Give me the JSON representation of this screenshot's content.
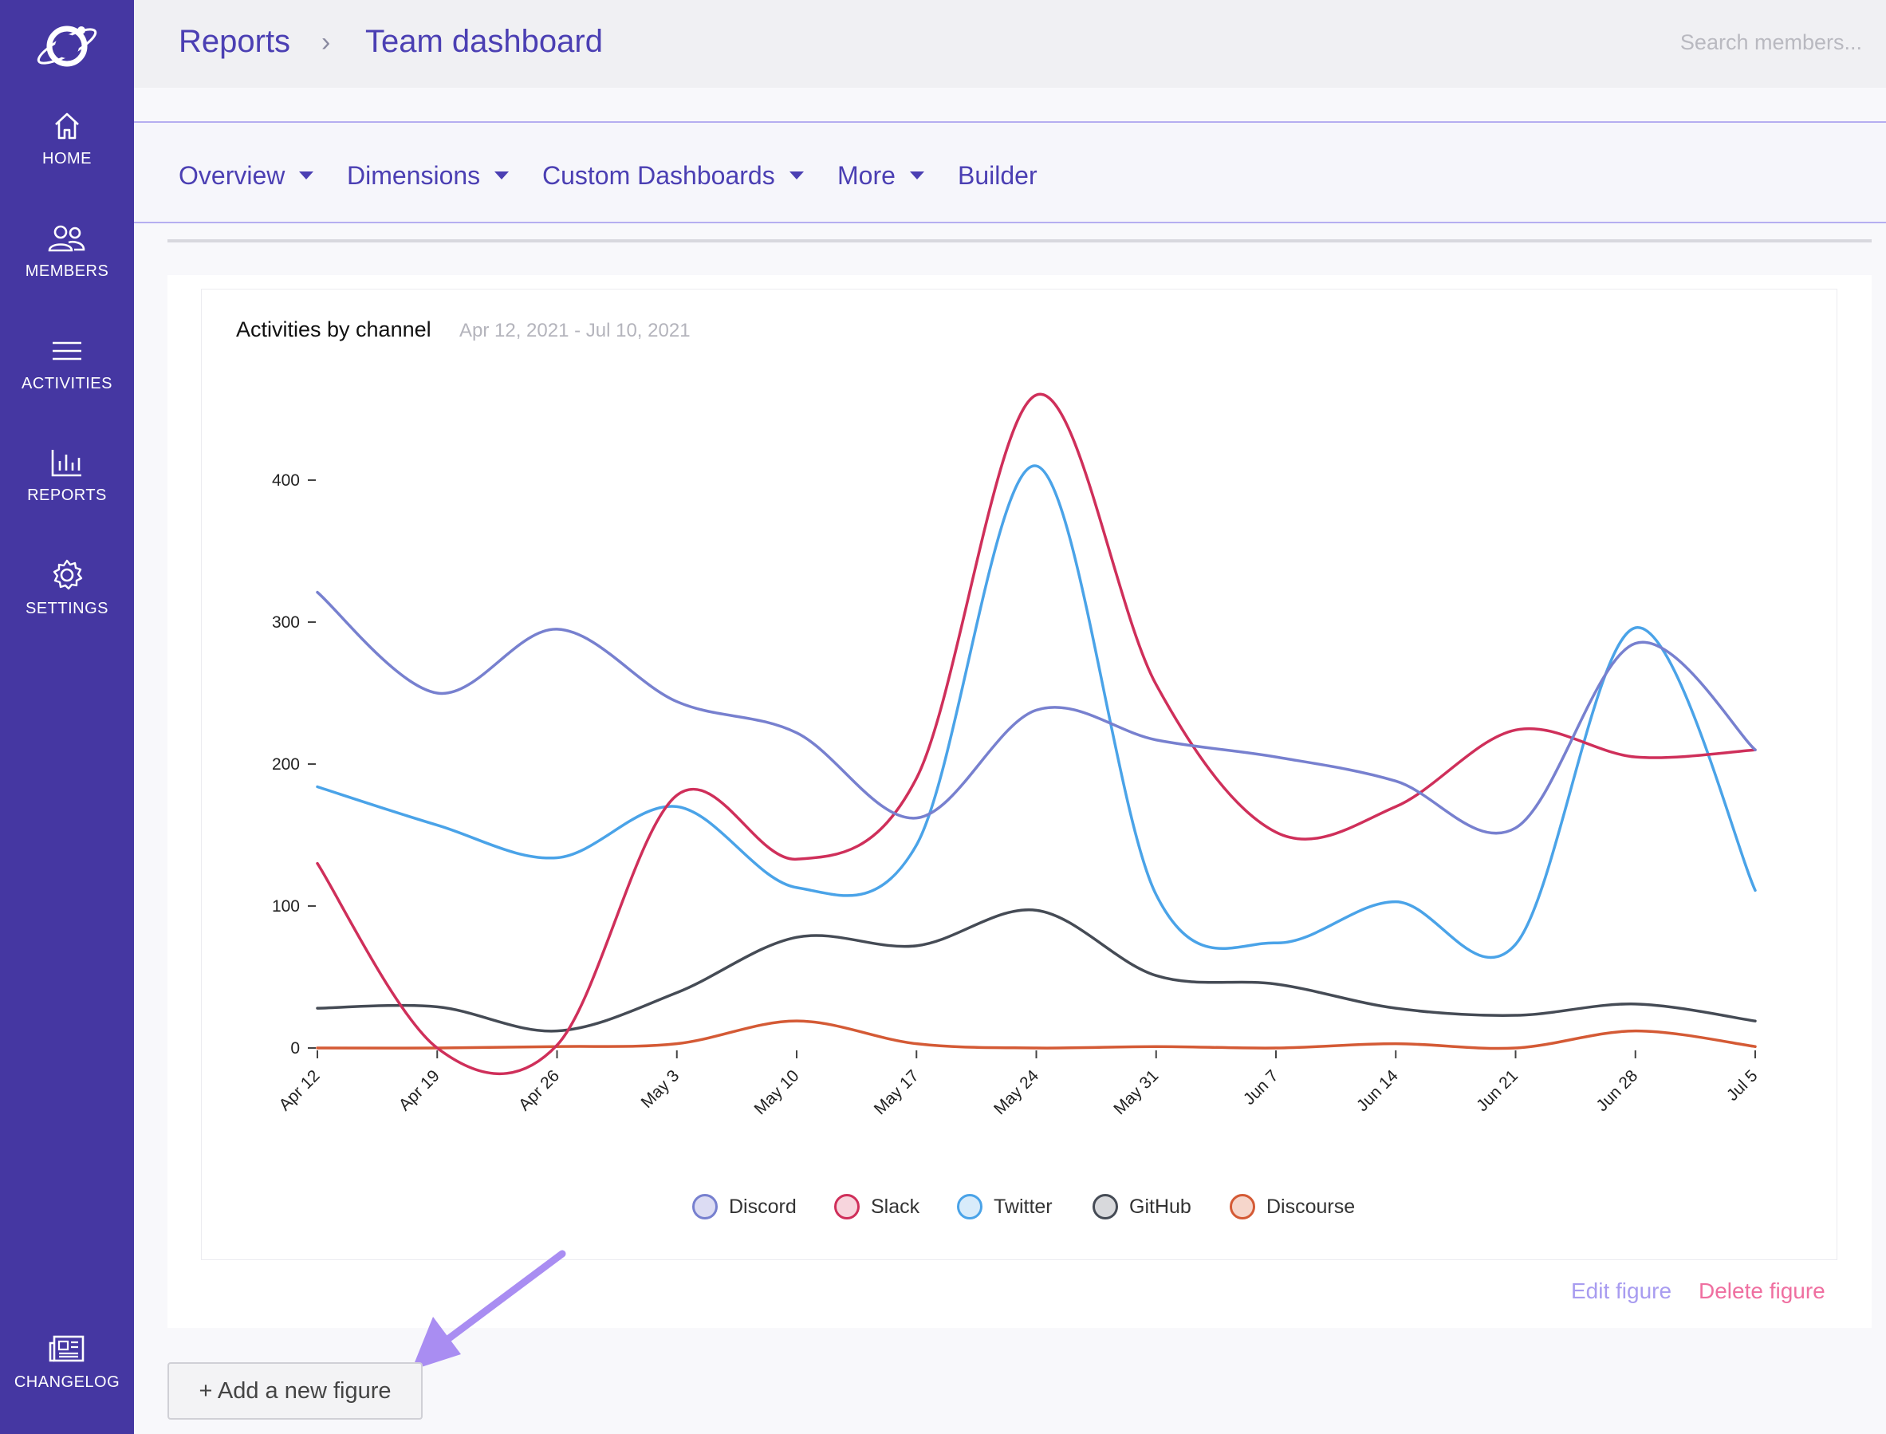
{
  "breadcrumb": {
    "root": "Reports",
    "separator": "›",
    "current": "Team dashboard"
  },
  "search": {
    "placeholder": "Search members..."
  },
  "sidebar": {
    "items": [
      {
        "label": "HOME",
        "icon": "home-icon"
      },
      {
        "label": "MEMBERS",
        "icon": "members-icon"
      },
      {
        "label": "ACTIVITIES",
        "icon": "activities-icon"
      },
      {
        "label": "REPORTS",
        "icon": "reports-icon"
      },
      {
        "label": "SETTINGS",
        "icon": "gear-icon"
      },
      {
        "label": "CHANGELOG",
        "icon": "newspaper-icon"
      }
    ]
  },
  "subnav": {
    "items": [
      {
        "label": "Overview",
        "dropdown": true
      },
      {
        "label": "Dimensions",
        "dropdown": true
      },
      {
        "label": "Custom Dashboards",
        "dropdown": true
      },
      {
        "label": "More",
        "dropdown": true
      },
      {
        "label": "Builder",
        "dropdown": false
      }
    ]
  },
  "figure": {
    "edit_label": "Edit figure",
    "delete_label": "Delete figure"
  },
  "add_figure_label": "+ Add a new figure",
  "colors": {
    "sidebar": "#4537a2",
    "accent": "#4b3fb3",
    "edit": "#a89cf0",
    "delete": "#ef6fa0",
    "arrow": "#a98df2"
  },
  "chart_data": {
    "type": "line",
    "title": "Activities by channel",
    "subtitle": "Apr 12, 2021 - Jul 10, 2021",
    "x": [
      "Apr 12",
      "Apr 19",
      "Apr 26",
      "May 3",
      "May 10",
      "May 17",
      "May 24",
      "May 31",
      "Jun 7",
      "Jun 14",
      "Jun 21",
      "Jun 28",
      "Jul 5"
    ],
    "y_ticks": [
      0,
      100,
      200,
      300,
      400
    ],
    "ylim": [
      -15,
      460
    ],
    "legend_position": "bottom",
    "series": [
      {
        "name": "Discord",
        "color": "#7780cf",
        "fill": "#dcdcf3",
        "values": [
          321,
          250,
          295,
          244,
          222,
          162,
          238,
          217,
          205,
          188,
          155,
          285,
          210
        ]
      },
      {
        "name": "Slack",
        "color": "#cf2f5a",
        "fill": "#f7d5dd",
        "values": [
          130,
          0,
          2,
          178,
          133,
          190,
          460,
          256,
          152,
          170,
          224,
          205,
          210
        ]
      },
      {
        "name": "Twitter",
        "color": "#4aa3e8",
        "fill": "#d8ebfa",
        "values": [
          184,
          157,
          134,
          170,
          113,
          143,
          410,
          108,
          74,
          103,
          73,
          296,
          111
        ]
      },
      {
        "name": "GitHub",
        "color": "#454b55",
        "fill": "#d8d9dc",
        "values": [
          28,
          29,
          12,
          39,
          78,
          72,
          97,
          51,
          45,
          28,
          23,
          31,
          19
        ]
      },
      {
        "name": "Discourse",
        "color": "#d45a35",
        "fill": "#f6d6cb",
        "values": [
          0,
          0,
          1,
          3,
          19,
          3,
          0,
          1,
          0,
          3,
          0,
          12,
          1
        ]
      }
    ]
  }
}
